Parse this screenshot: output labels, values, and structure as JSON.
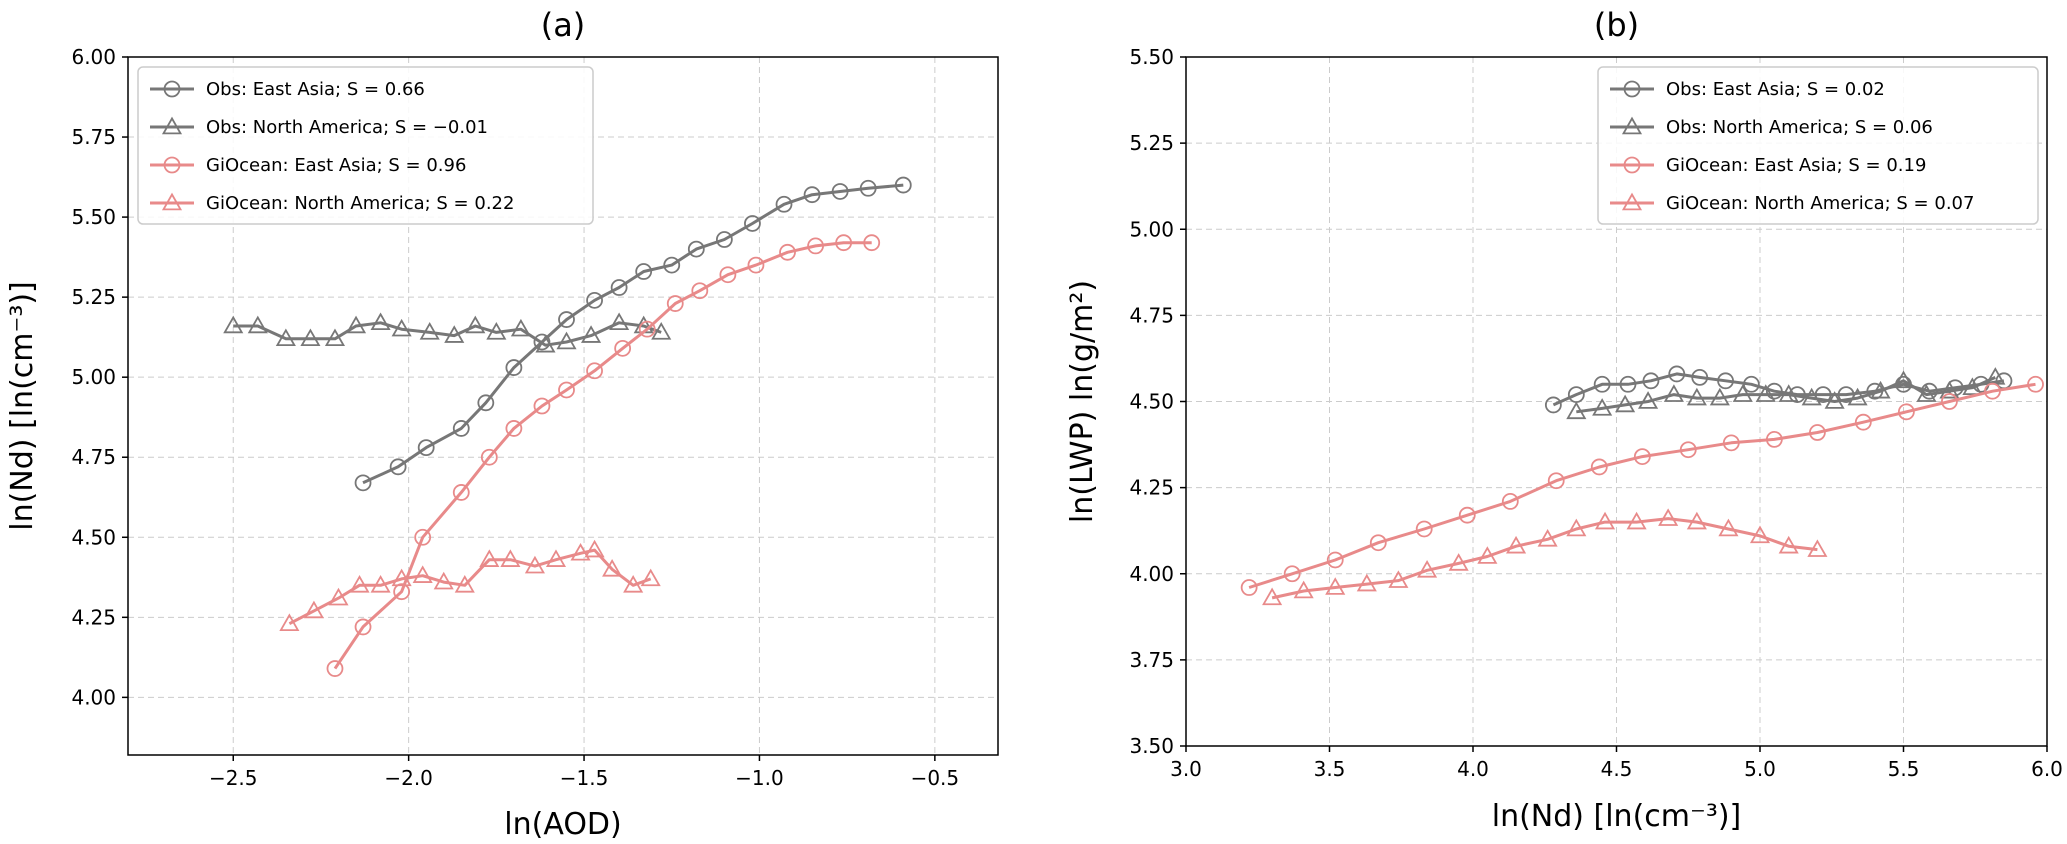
{
  "colors": {
    "obs": "#777777",
    "gi": "#e88a8a"
  },
  "chart_data": [
    {
      "type": "line",
      "title": "(a)",
      "xlabel": "ln(AOD)",
      "ylabel": "ln(Nd) [ln(cm⁻³)]",
      "xlim": [
        -2.8,
        -0.32
      ],
      "ylim": [
        3.82,
        6.0
      ],
      "xticks": [
        -2.5,
        -2.0,
        -1.5,
        -1.0,
        -0.5
      ],
      "xtick_labels": [
        "−2.5",
        "−2.0",
        "−1.5",
        "−1.0",
        "−0.5"
      ],
      "yticks": [
        4.0,
        4.25,
        4.5,
        4.75,
        5.0,
        5.25,
        5.5,
        5.75,
        6.0
      ],
      "ytick_labels": [
        "4.00",
        "4.25",
        "4.50",
        "4.75",
        "5.00",
        "5.25",
        "5.50",
        "5.75",
        "6.00"
      ],
      "grid": true,
      "legend_position": "upper-left",
      "series": [
        {
          "name": "Obs: East Asia; S = 0.66",
          "color": "obs",
          "marker": "circle",
          "x": [
            -2.13,
            -2.03,
            -1.95,
            -1.85,
            -1.78,
            -1.7,
            -1.62,
            -1.55,
            -1.47,
            -1.4,
            -1.33,
            -1.25,
            -1.18,
            -1.1,
            -1.02,
            -0.93,
            -0.85,
            -0.77,
            -0.69,
            -0.59
          ],
          "y": [
            4.67,
            4.72,
            4.78,
            4.84,
            4.92,
            5.03,
            5.11,
            5.18,
            5.24,
            5.28,
            5.33,
            5.35,
            5.4,
            5.43,
            5.48,
            5.54,
            5.57,
            5.58,
            5.59,
            5.6
          ]
        },
        {
          "name": "Obs: North America; S = −0.01",
          "color": "obs",
          "marker": "triangle",
          "x": [
            -2.5,
            -2.43,
            -2.35,
            -2.28,
            -2.21,
            -2.15,
            -2.08,
            -2.02,
            -1.94,
            -1.87,
            -1.81,
            -1.75,
            -1.68,
            -1.61,
            -1.55,
            -1.48,
            -1.4,
            -1.33,
            -1.28
          ],
          "y": [
            5.16,
            5.16,
            5.12,
            5.12,
            5.12,
            5.16,
            5.17,
            5.15,
            5.14,
            5.13,
            5.16,
            5.14,
            5.15,
            5.1,
            5.11,
            5.13,
            5.17,
            5.16,
            5.14
          ]
        },
        {
          "name": "GiOcean: East Asia; S = 0.96",
          "color": "gi",
          "marker": "circle",
          "x": [
            -2.21,
            -2.13,
            -2.02,
            -1.96,
            -1.85,
            -1.77,
            -1.7,
            -1.62,
            -1.55,
            -1.47,
            -1.39,
            -1.32,
            -1.24,
            -1.17,
            -1.09,
            -1.01,
            -0.92,
            -0.84,
            -0.76,
            -0.68
          ],
          "y": [
            4.09,
            4.22,
            4.33,
            4.5,
            4.64,
            4.75,
            4.84,
            4.91,
            4.96,
            5.02,
            5.09,
            5.15,
            5.23,
            5.27,
            5.32,
            5.35,
            5.39,
            5.41,
            5.42,
            5.42
          ]
        },
        {
          "name": "GiOcean: North America; S = 0.22",
          "color": "gi",
          "marker": "triangle",
          "x": [
            -2.34,
            -2.27,
            -2.2,
            -2.14,
            -2.08,
            -2.02,
            -1.96,
            -1.9,
            -1.84,
            -1.77,
            -1.71,
            -1.64,
            -1.58,
            -1.51,
            -1.47,
            -1.42,
            -1.36,
            -1.31
          ],
          "y": [
            4.23,
            4.27,
            4.31,
            4.35,
            4.35,
            4.37,
            4.38,
            4.36,
            4.35,
            4.43,
            4.43,
            4.41,
            4.43,
            4.45,
            4.46,
            4.4,
            4.35,
            4.37
          ]
        }
      ]
    },
    {
      "type": "line",
      "title": "(b)",
      "xlabel": "ln(Nd) [ln(cm⁻³)]",
      "ylabel": "ln(LWP) ln(g/m²)",
      "xlim": [
        3.0,
        6.0
      ],
      "ylim": [
        3.5,
        5.5
      ],
      "xticks": [
        3.0,
        3.5,
        4.0,
        4.5,
        5.0,
        5.5,
        6.0
      ],
      "xtick_labels": [
        "3.0",
        "3.5",
        "4.0",
        "4.5",
        "5.0",
        "5.5",
        "6.0"
      ],
      "yticks": [
        3.5,
        3.75,
        4.0,
        4.25,
        4.5,
        4.75,
        5.0,
        5.25,
        5.5
      ],
      "ytick_labels": [
        "3.50",
        "3.75",
        "4.00",
        "4.25",
        "4.50",
        "4.75",
        "5.00",
        "5.25",
        "5.50"
      ],
      "grid": true,
      "legend_position": "upper-right",
      "series": [
        {
          "name": "Obs: East Asia; S = 0.02",
          "color": "obs",
          "marker": "circle",
          "x": [
            4.28,
            4.36,
            4.45,
            4.54,
            4.62,
            4.71,
            4.79,
            4.88,
            4.97,
            5.05,
            5.13,
            5.22,
            5.3,
            5.4,
            5.5,
            5.59,
            5.68,
            5.77,
            5.85
          ],
          "y": [
            4.49,
            4.52,
            4.55,
            4.55,
            4.56,
            4.58,
            4.57,
            4.56,
            4.55,
            4.53,
            4.52,
            4.52,
            4.52,
            4.53,
            4.55,
            4.53,
            4.54,
            4.55,
            4.56
          ]
        },
        {
          "name": "Obs: North America; S = 0.06",
          "color": "obs",
          "marker": "triangle",
          "x": [
            4.36,
            4.45,
            4.53,
            4.61,
            4.7,
            4.78,
            4.86,
            4.94,
            5.02,
            5.1,
            5.18,
            5.26,
            5.34,
            5.42,
            5.5,
            5.58,
            5.66,
            5.74,
            5.82
          ],
          "y": [
            4.47,
            4.48,
            4.49,
            4.5,
            4.52,
            4.51,
            4.51,
            4.52,
            4.52,
            4.52,
            4.51,
            4.5,
            4.51,
            4.53,
            4.56,
            4.52,
            4.53,
            4.54,
            4.57
          ]
        },
        {
          "name": "GiOcean: East Asia; S = 0.19",
          "color": "gi",
          "marker": "circle",
          "x": [
            3.22,
            3.37,
            3.52,
            3.67,
            3.83,
            3.98,
            4.13,
            4.29,
            4.44,
            4.59,
            4.75,
            4.9,
            5.05,
            5.2,
            5.36,
            5.51,
            5.66,
            5.81,
            5.96
          ],
          "y": [
            3.96,
            4.0,
            4.04,
            4.09,
            4.13,
            4.17,
            4.21,
            4.27,
            4.31,
            4.34,
            4.36,
            4.38,
            4.39,
            4.41,
            4.44,
            4.47,
            4.5,
            4.53,
            4.55
          ]
        },
        {
          "name": "GiOcean: North America; S = 0.07",
          "color": "gi",
          "marker": "triangle",
          "x": [
            3.3,
            3.41,
            3.52,
            3.63,
            3.74,
            3.84,
            3.95,
            4.05,
            4.15,
            4.26,
            4.36,
            4.46,
            4.57,
            4.68,
            4.78,
            4.89,
            5.0,
            5.1,
            5.2
          ],
          "y": [
            3.93,
            3.95,
            3.96,
            3.97,
            3.98,
            4.01,
            4.03,
            4.05,
            4.08,
            4.1,
            4.13,
            4.15,
            4.15,
            4.16,
            4.15,
            4.13,
            4.11,
            4.08,
            4.07
          ]
        }
      ]
    }
  ]
}
